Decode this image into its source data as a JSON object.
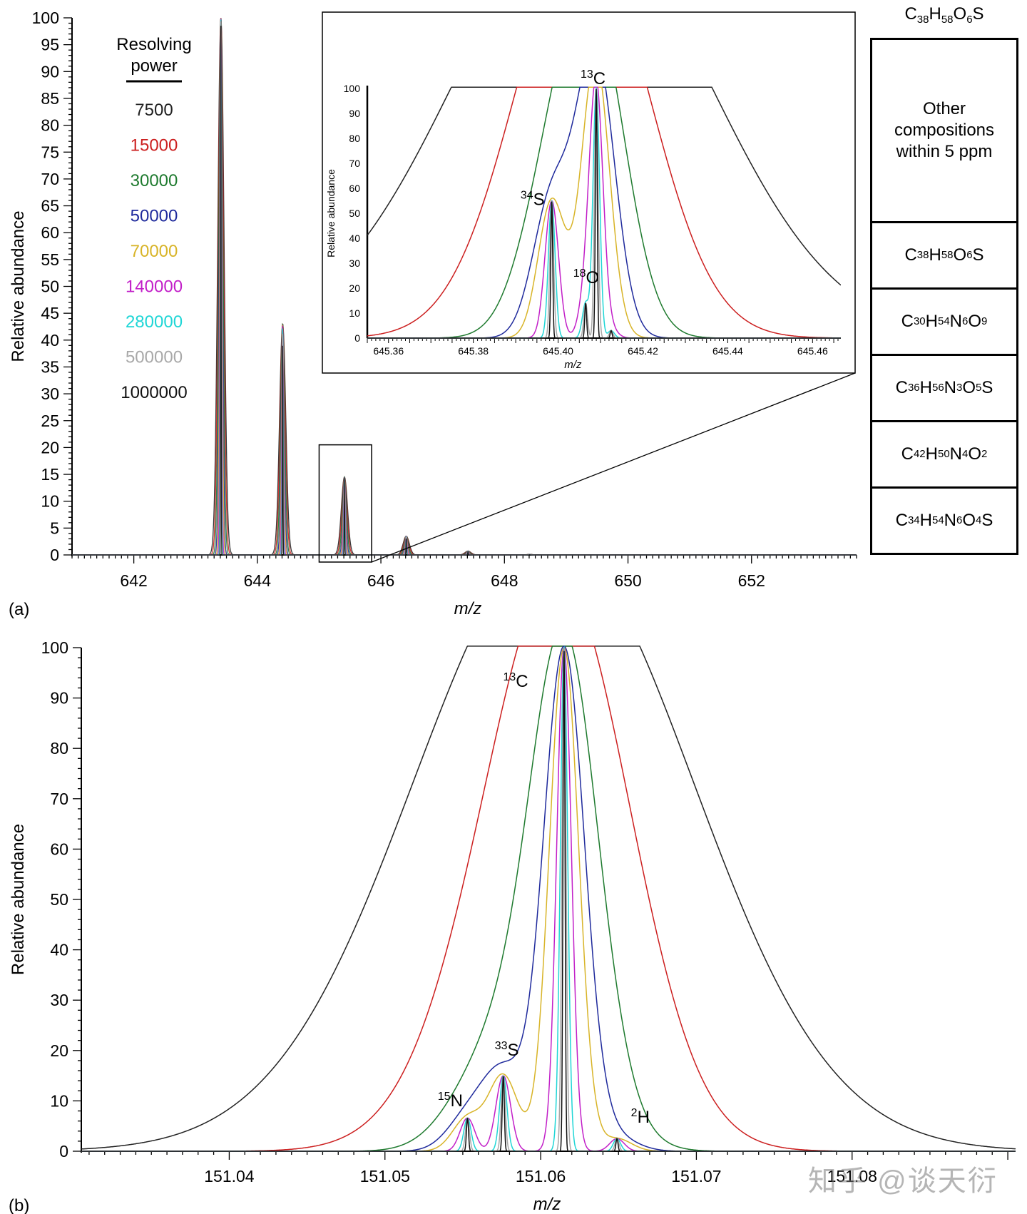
{
  "chart_data": [
    {
      "id": "panel-a",
      "type": "line",
      "panel_label": "(a)",
      "xlabel": "m/z",
      "ylabel": "Relative abundance",
      "xlim": [
        641.0,
        653.7
      ],
      "ylim": [
        0,
        100
      ],
      "xticks": [
        642,
        644,
        646,
        648,
        650,
        652
      ],
      "yticks": [
        0,
        5,
        10,
        15,
        20,
        25,
        30,
        35,
        40,
        45,
        50,
        55,
        60,
        65,
        70,
        75,
        80,
        85,
        90,
        95,
        100
      ],
      "legend_title": "Resolving\npower",
      "series": [
        {
          "name": "7500",
          "color": "#222222"
        },
        {
          "name": "15000",
          "color": "#cc1f1f"
        },
        {
          "name": "30000",
          "color": "#1e7a2e"
        },
        {
          "name": "50000",
          "color": "#1f2a9c"
        },
        {
          "name": "70000",
          "color": "#d8b428"
        },
        {
          "name": "140000",
          "color": "#c21fc8"
        },
        {
          "name": "280000",
          "color": "#1fd6d6"
        },
        {
          "name": "500000",
          "color": "#a8a8a8"
        },
        {
          "name": "1000000",
          "color": "#111111"
        }
      ],
      "peaks": [
        {
          "x": 643.41,
          "y": 100
        },
        {
          "x": 644.41,
          "y": 43
        },
        {
          "x": 645.41,
          "y": 14.5
        },
        {
          "x": 646.41,
          "y": 3.5
        },
        {
          "x": 647.41,
          "y": 0.7
        },
        {
          "x": 648.41,
          "y": 0.1
        }
      ],
      "zoom_box": {
        "x_range": [
          645.0,
          645.85
        ],
        "y_range": [
          0,
          20.5
        ]
      },
      "inset": {
        "xlabel": "m/z",
        "ylabel": "Relative abundance",
        "xlim": [
          645.355,
          645.466
        ],
        "ylim": [
          0,
          100
        ],
        "xticks": [
          "645.36",
          "645.38",
          "645.40",
          "645.42",
          "645.44",
          "645.46"
        ],
        "yticks": [
          0,
          10,
          20,
          30,
          40,
          50,
          60,
          70,
          80,
          90,
          100
        ],
        "main_peak_x": 645.409,
        "isotope_peaks": [
          {
            "x": 645.3985,
            "y": 55
          },
          {
            "x": 645.4065,
            "y": 14
          },
          {
            "x": 645.4125,
            "y": 3
          }
        ],
        "annotations": [
          {
            "iso": "13",
            "el": "C"
          },
          {
            "iso": "34",
            "el": "S"
          },
          {
            "iso": "18",
            "el": "O"
          }
        ]
      }
    },
    {
      "id": "panel-b",
      "type": "line",
      "panel_label": "(b)",
      "xlabel": "m/z",
      "ylabel": "Relative abundance",
      "xlim": [
        151.0305,
        151.0905
      ],
      "ylim": [
        0,
        100
      ],
      "xticks": [
        "151.04",
        "151.05",
        "151.06",
        "151.07",
        "151.08"
      ],
      "yticks": [
        0,
        10,
        20,
        30,
        40,
        50,
        60,
        70,
        80,
        90,
        100
      ],
      "main_peak_x": 151.0615,
      "isotope_peaks": [
        {
          "x": 151.0553,
          "y": 6.6
        },
        {
          "x": 151.0576,
          "y": 15
        },
        {
          "x": 151.0649,
          "y": 2.5
        }
      ],
      "annotations": [
        {
          "iso": "13",
          "el": "C"
        },
        {
          "iso": "33",
          "el": "S"
        },
        {
          "iso": "15",
          "el": "N"
        },
        {
          "iso": "2",
          "el": "H"
        }
      ]
    }
  ],
  "composition_table": {
    "top_formula": [
      {
        "t": "C"
      },
      {
        "t": "38",
        "sub": true
      },
      {
        "t": "H"
      },
      {
        "t": "58",
        "sub": true
      },
      {
        "t": "O"
      },
      {
        "t": "6",
        "sub": true
      },
      {
        "t": "S"
      }
    ],
    "header": "Other\ncompositions\nwithin 5 ppm",
    "rows": [
      [
        {
          "t": "C"
        },
        {
          "t": "38",
          "sub": true
        },
        {
          "t": "H"
        },
        {
          "t": "58",
          "sub": true
        },
        {
          "t": "O"
        },
        {
          "t": "6",
          "sub": true
        },
        {
          "t": "S"
        }
      ],
      [
        {
          "t": "C"
        },
        {
          "t": "30",
          "sub": true
        },
        {
          "t": "H"
        },
        {
          "t": "54",
          "sub": true
        },
        {
          "t": "N"
        },
        {
          "t": "6",
          "sub": true
        },
        {
          "t": "O"
        },
        {
          "t": "9",
          "sub": true
        }
      ],
      [
        {
          "t": "C"
        },
        {
          "t": "36",
          "sub": true
        },
        {
          "t": "H"
        },
        {
          "t": "56",
          "sub": true
        },
        {
          "t": "N"
        },
        {
          "t": "3",
          "sub": true
        },
        {
          "t": "O"
        },
        {
          "t": "5",
          "sub": true
        },
        {
          "t": "S"
        }
      ],
      [
        {
          "t": "C"
        },
        {
          "t": "42",
          "sub": true
        },
        {
          "t": "H"
        },
        {
          "t": "50",
          "sub": true
        },
        {
          "t": "N"
        },
        {
          "t": "4",
          "sub": true
        },
        {
          "t": "O"
        },
        {
          "t": "2",
          "sub": true
        }
      ],
      [
        {
          "t": "C"
        },
        {
          "t": "34",
          "sub": true
        },
        {
          "t": "H"
        },
        {
          "t": "54",
          "sub": true
        },
        {
          "t": "N"
        },
        {
          "t": "6",
          "sub": true
        },
        {
          "t": "O"
        },
        {
          "t": "4",
          "sub": true
        },
        {
          "t": "S"
        }
      ]
    ]
  },
  "watermark": "知乎 @谈天衍"
}
